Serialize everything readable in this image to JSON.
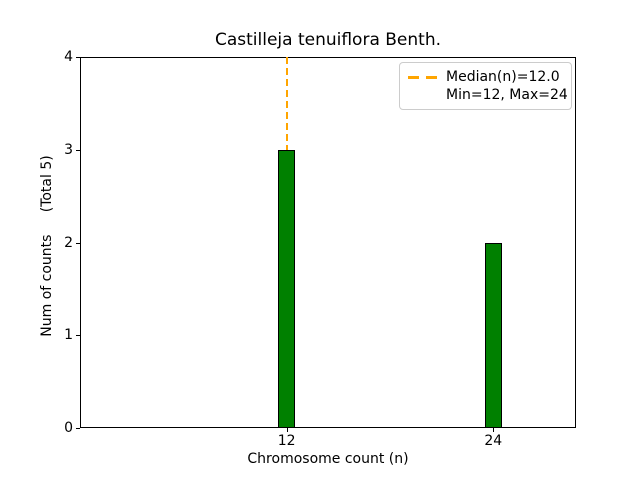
{
  "chart_data": {
    "type": "bar",
    "title": "Castilleja tenuiflora Benth.",
    "xlabel": "Chromosome count (n)",
    "ylabel": "Num of counts     (Total 5)",
    "total_counts": 5,
    "x": [
      12,
      24
    ],
    "values": [
      3,
      2
    ],
    "bar_width": 1,
    "bar_color": "#008000",
    "bar_edge_color": "#000000",
    "xlim": [
      0,
      28.8
    ],
    "ylim": [
      0,
      4
    ],
    "xticks": [
      12,
      24
    ],
    "xtick_labels": [
      "12",
      "24"
    ],
    "yticks": [
      0,
      1,
      2,
      3,
      4
    ],
    "ytick_labels": [
      "0",
      "1",
      "2",
      "3",
      "4"
    ],
    "median_line": {
      "x": 12.0,
      "color": "#FFA500",
      "style": "dashed"
    },
    "legend": {
      "position": "upper right",
      "entries": [
        "Median(n)=12.0",
        "Min=12, Max=24"
      ]
    },
    "grid": false
  }
}
